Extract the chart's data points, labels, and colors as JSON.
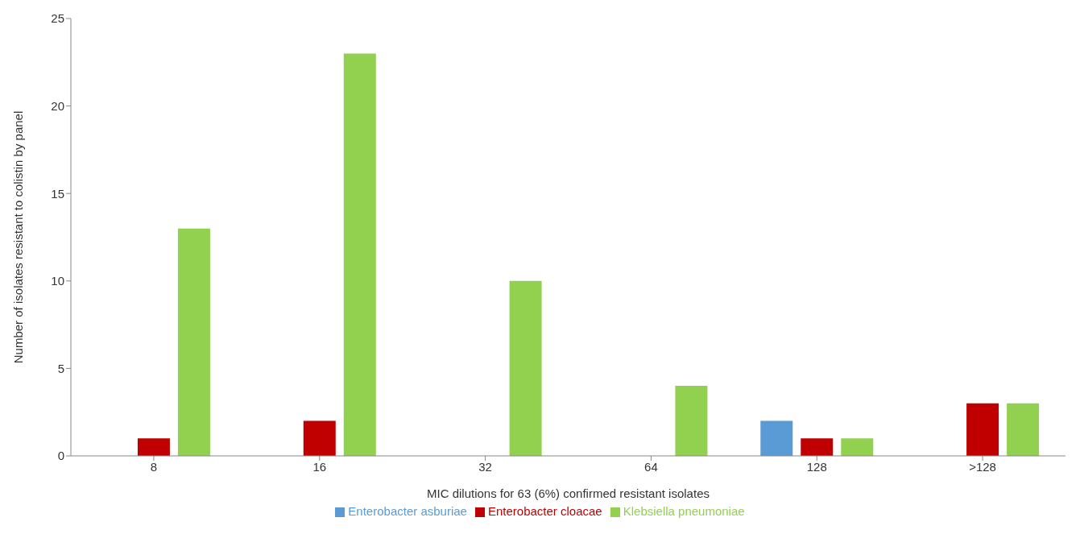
{
  "chart_data": {
    "type": "bar",
    "xlabel": "MIC dilutions for 63 (6%) confirmed resistant isolates",
    "ylabel": "Number of isolates resistant to colistin by panel",
    "categories": [
      "8",
      "16",
      "32",
      "64",
      "128",
      ">128"
    ],
    "series": [
      {
        "name": "Enterobacter asburiae",
        "color": "#5b9bd5",
        "values": [
          0,
          0,
          0,
          0,
          2,
          0
        ]
      },
      {
        "name": "Enterobacter cloacae",
        "color": "#c00000",
        "values": [
          1,
          2,
          0,
          0,
          1,
          3
        ]
      },
      {
        "name": "Klebsiella pneumoniae",
        "color": "#92d050",
        "values": [
          13,
          23,
          10,
          4,
          1,
          3
        ]
      }
    ],
    "ylim": [
      0,
      25
    ],
    "yticks": [
      0,
      5,
      10,
      15,
      20,
      25
    ],
    "grid": false,
    "legend": "bottom"
  }
}
